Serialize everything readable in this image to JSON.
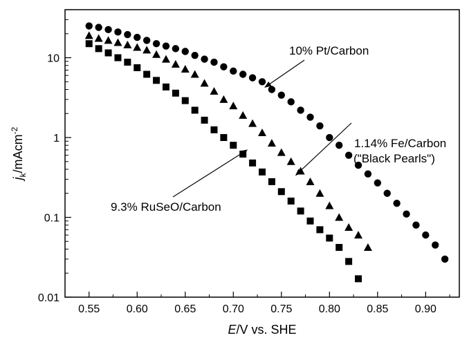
{
  "chart_data": {
    "type": "scatter",
    "xlabel": {
      "italic": "E",
      "rest": "/V vs. SHE"
    },
    "ylabel": {
      "main": "j",
      "sub": "k",
      "unit": "/mAcm",
      "sup": "-2"
    },
    "xlim": [
      0.525,
      0.935
    ],
    "ylim": [
      0.01,
      40
    ],
    "yscale": "log",
    "xticks": [
      0.55,
      0.6,
      0.65,
      0.7,
      0.75,
      0.8,
      0.85,
      0.9
    ],
    "xtick_labels": [
      "0.55",
      "0.60",
      "0.65",
      "0.70",
      "0.75",
      "0.80",
      "0.85",
      "0.90"
    ],
    "yticks": [
      0.01,
      0.1,
      1,
      10
    ],
    "ytick_labels": [
      "0.01",
      "0.1",
      "1",
      "10"
    ],
    "grid": false,
    "series": [
      {
        "name": "10% Pt/Carbon",
        "marker": "circle",
        "x": [
          0.55,
          0.56,
          0.57,
          0.58,
          0.59,
          0.6,
          0.61,
          0.62,
          0.63,
          0.64,
          0.65,
          0.66,
          0.67,
          0.68,
          0.69,
          0.7,
          0.71,
          0.72,
          0.73,
          0.74,
          0.75,
          0.76,
          0.77,
          0.78,
          0.79,
          0.8,
          0.81,
          0.82,
          0.83,
          0.84,
          0.85,
          0.86,
          0.87,
          0.88,
          0.89,
          0.9,
          0.91,
          0.92
        ],
        "y": [
          25,
          24,
          22.5,
          21,
          19.5,
          18,
          16.5,
          15,
          14,
          13,
          12,
          10.7,
          9.6,
          8.8,
          7.7,
          6.8,
          6.2,
          5.6,
          5.0,
          4.0,
          3.4,
          2.8,
          2.2,
          1.8,
          1.4,
          1.0,
          0.8,
          0.6,
          0.45,
          0.35,
          0.27,
          0.2,
          0.15,
          0.11,
          0.08,
          0.06,
          0.045,
          0.03
        ]
      },
      {
        "name": "1.14% Fe/Carbon (\"Black Pearls\")",
        "marker": "triangle",
        "x": [
          0.55,
          0.56,
          0.57,
          0.58,
          0.59,
          0.6,
          0.61,
          0.62,
          0.63,
          0.64,
          0.65,
          0.66,
          0.67,
          0.68,
          0.69,
          0.7,
          0.71,
          0.72,
          0.73,
          0.74,
          0.75,
          0.76,
          0.77,
          0.78,
          0.79,
          0.8,
          0.81,
          0.82,
          0.83,
          0.84
        ],
        "y": [
          19,
          17.5,
          16.5,
          15.5,
          14.5,
          13.5,
          12.5,
          11,
          9.6,
          8.3,
          7.2,
          6.2,
          4.8,
          3.8,
          3.0,
          2.5,
          1.9,
          1.5,
          1.15,
          0.85,
          0.65,
          0.5,
          0.38,
          0.28,
          0.2,
          0.14,
          0.1,
          0.075,
          0.06,
          0.042
        ]
      },
      {
        "name": "9.3% RuSeO/Carbon",
        "marker": "square",
        "x": [
          0.55,
          0.56,
          0.57,
          0.58,
          0.59,
          0.6,
          0.61,
          0.62,
          0.63,
          0.64,
          0.65,
          0.66,
          0.67,
          0.68,
          0.69,
          0.7,
          0.71,
          0.72,
          0.73,
          0.74,
          0.75,
          0.76,
          0.77,
          0.78,
          0.79,
          0.8,
          0.81,
          0.82,
          0.83
        ],
        "y": [
          15,
          13,
          11.5,
          10,
          8.8,
          7.5,
          6.2,
          5.2,
          4.3,
          3.6,
          2.9,
          2.2,
          1.65,
          1.25,
          1.0,
          0.8,
          0.62,
          0.48,
          0.37,
          0.28,
          0.21,
          0.16,
          0.12,
          0.09,
          0.07,
          0.055,
          0.042,
          0.028,
          0.017
        ]
      }
    ],
    "annotations": [
      {
        "lines": [
          "10% Pt/Carbon"
        ],
        "series": 0,
        "point_x": 0.73,
        "point_y": 5.0
      },
      {
        "lines": [
          "1.14% Fe/Carbon",
          "(\"Black Pearls\")"
        ],
        "series": 1,
        "point_x": 0.77,
        "point_y": 0.38
      },
      {
        "lines": [
          "9.3% RuSeO/Carbon"
        ],
        "series": 2,
        "point_x": 0.71,
        "point_y": 0.62
      }
    ]
  }
}
